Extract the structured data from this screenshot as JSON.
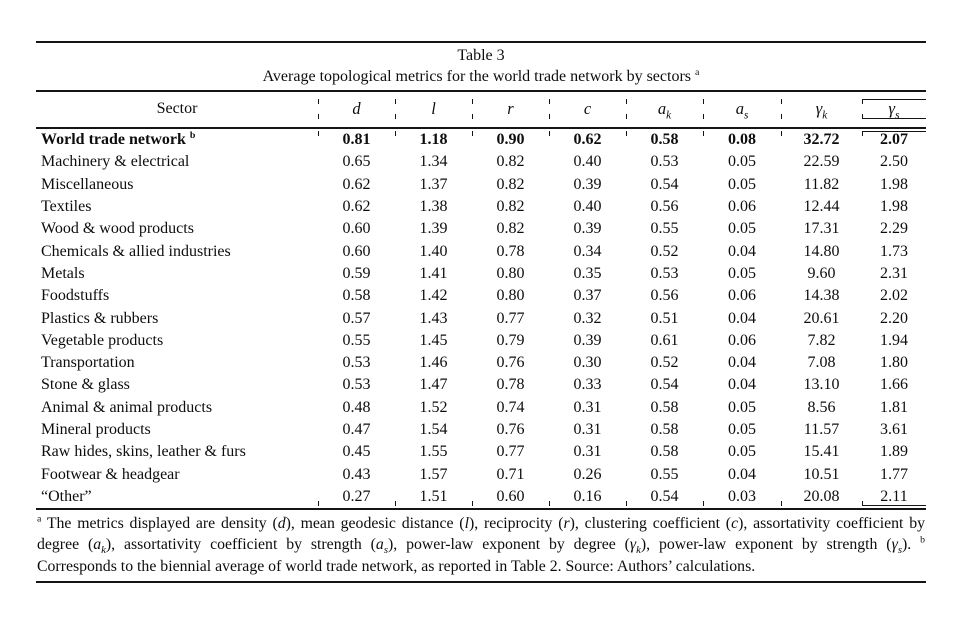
{
  "table": {
    "title": "Table 3",
    "subtitle": "Average topological metrics for the world trade network by sectors",
    "subtitle_note_mark": "a",
    "columns": [
      {
        "base": "Sector",
        "sub": ""
      },
      {
        "base": "d",
        "sub": ""
      },
      {
        "base": "l",
        "sub": ""
      },
      {
        "base": "r",
        "sub": ""
      },
      {
        "base": "c",
        "sub": ""
      },
      {
        "base": "a",
        "sub": "k"
      },
      {
        "base": "a",
        "sub": "s"
      },
      {
        "base": "γ",
        "sub": "k"
      },
      {
        "base": "γ",
        "sub": "s"
      }
    ],
    "rows": [
      {
        "sector": "World trade network",
        "note_mark": "b",
        "bold": true,
        "values": [
          "0.81",
          "1.18",
          "0.90",
          "0.62",
          "0.58",
          "0.08",
          "32.72",
          "2.07"
        ]
      },
      {
        "sector": "Machinery & electrical",
        "values": [
          "0.65",
          "1.34",
          "0.82",
          "0.40",
          "0.53",
          "0.05",
          "22.59",
          "2.50"
        ]
      },
      {
        "sector": "Miscellaneous",
        "values": [
          "0.62",
          "1.37",
          "0.82",
          "0.39",
          "0.54",
          "0.05",
          "11.82",
          "1.98"
        ]
      },
      {
        "sector": "Textiles",
        "values": [
          "0.62",
          "1.38",
          "0.82",
          "0.40",
          "0.56",
          "0.06",
          "12.44",
          "1.98"
        ]
      },
      {
        "sector": "Wood & wood products",
        "values": [
          "0.60",
          "1.39",
          "0.82",
          "0.39",
          "0.55",
          "0.05",
          "17.31",
          "2.29"
        ]
      },
      {
        "sector": "Chemicals & allied industries",
        "values": [
          "0.60",
          "1.40",
          "0.78",
          "0.34",
          "0.52",
          "0.04",
          "14.80",
          "1.73"
        ]
      },
      {
        "sector": "Metals",
        "values": [
          "0.59",
          "1.41",
          "0.80",
          "0.35",
          "0.53",
          "0.05",
          "9.60",
          "2.31"
        ]
      },
      {
        "sector": "Foodstuffs",
        "values": [
          "0.58",
          "1.42",
          "0.80",
          "0.37",
          "0.56",
          "0.06",
          "14.38",
          "2.02"
        ]
      },
      {
        "sector": "Plastics & rubbers",
        "values": [
          "0.57",
          "1.43",
          "0.77",
          "0.32",
          "0.51",
          "0.04",
          "20.61",
          "2.20"
        ]
      },
      {
        "sector": "Vegetable products",
        "values": [
          "0.55",
          "1.45",
          "0.79",
          "0.39",
          "0.61",
          "0.06",
          "7.82",
          "1.94"
        ]
      },
      {
        "sector": "Transportation",
        "values": [
          "0.53",
          "1.46",
          "0.76",
          "0.30",
          "0.52",
          "0.04",
          "7.08",
          "1.80"
        ]
      },
      {
        "sector": "Stone & glass",
        "values": [
          "0.53",
          "1.47",
          "0.78",
          "0.33",
          "0.54",
          "0.04",
          "13.10",
          "1.66"
        ]
      },
      {
        "sector": "Animal & animal products",
        "values": [
          "0.48",
          "1.52",
          "0.74",
          "0.31",
          "0.58",
          "0.05",
          "8.56",
          "1.81"
        ]
      },
      {
        "sector": "Mineral products",
        "values": [
          "0.47",
          "1.54",
          "0.76",
          "0.31",
          "0.58",
          "0.05",
          "11.57",
          "3.61"
        ]
      },
      {
        "sector": "Raw hides, skins, leather & furs",
        "values": [
          "0.45",
          "1.55",
          "0.77",
          "0.31",
          "0.58",
          "0.05",
          "15.41",
          "1.89"
        ]
      },
      {
        "sector": "Footwear & headgear",
        "values": [
          "0.43",
          "1.57",
          "0.71",
          "0.26",
          "0.55",
          "0.04",
          "10.51",
          "1.77"
        ]
      },
      {
        "sector": "“Other”",
        "values": [
          "0.27",
          "1.51",
          "0.60",
          "0.16",
          "0.54",
          "0.03",
          "20.08",
          "2.11"
        ]
      }
    ]
  },
  "footnote": {
    "segments": [
      {
        "t": "a",
        "sup": true
      },
      {
        "t": " The metrics displayed are density ("
      },
      {
        "t": "d",
        "i": true
      },
      {
        "t": "), mean geodesic distance ("
      },
      {
        "t": "l",
        "i": true
      },
      {
        "t": "), reciprocity ("
      },
      {
        "t": "r",
        "i": true
      },
      {
        "t": "), clustering coefficient ("
      },
      {
        "t": "c",
        "i": true
      },
      {
        "t": "), assortativity coefficient by degree ("
      },
      {
        "t": "a",
        "i": true
      },
      {
        "t": "k",
        "i": true,
        "sub": true
      },
      {
        "t": "), assortativity coefficient by strength ("
      },
      {
        "t": "a",
        "i": true
      },
      {
        "t": "s",
        "i": true,
        "sub": true
      },
      {
        "t": "), power-law exponent by degree ("
      },
      {
        "t": "γ",
        "i": true
      },
      {
        "t": "k",
        "i": true,
        "sub": true
      },
      {
        "t": "), power-law exponent by strength ("
      },
      {
        "t": "γ",
        "i": true
      },
      {
        "t": "s",
        "i": true,
        "sub": true
      },
      {
        "t": "). "
      },
      {
        "t": "b",
        "sup": true
      },
      {
        "t": " Corresponds to the biennial average of world trade network, as reported in Table 2. Source: Authors’ calculations."
      }
    ]
  }
}
